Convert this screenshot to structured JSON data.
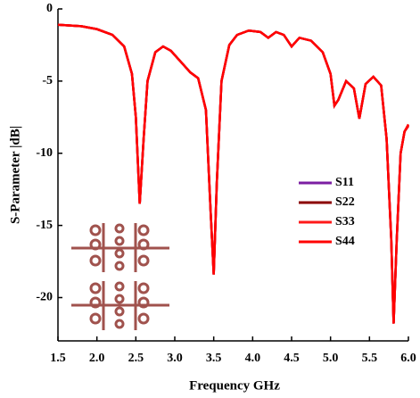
{
  "chart_data": {
    "type": "line",
    "x_label": "Frequency GHz",
    "y_label": "S-Parameter |dB|",
    "x": [
      1.5,
      1.8,
      2.0,
      2.2,
      2.35,
      2.45,
      2.5,
      2.55,
      2.6,
      2.65,
      2.75,
      2.85,
      2.95,
      3.1,
      3.2,
      3.3,
      3.4,
      3.46,
      3.5,
      3.54,
      3.6,
      3.7,
      3.8,
      3.95,
      4.1,
      4.2,
      4.3,
      4.4,
      4.5,
      4.6,
      4.75,
      4.9,
      5.0,
      5.05,
      5.1,
      5.2,
      5.3,
      5.37,
      5.45,
      5.55,
      5.65,
      5.72,
      5.78,
      5.81,
      5.85,
      5.9,
      5.95,
      6.0
    ],
    "series": [
      {
        "name": "S11",
        "color": "#7b1fa2",
        "values": [
          -1.1,
          -1.2,
          -1.4,
          -1.8,
          -2.6,
          -4.5,
          -7.5,
          -13.5,
          -9,
          -5,
          -3,
          -2.6,
          -2.9,
          -3.8,
          -4.4,
          -4.8,
          -7,
          -14,
          -18.4,
          -12,
          -5,
          -2.5,
          -1.8,
          -1.5,
          -1.6,
          -2.0,
          -1.6,
          -1.8,
          -2.6,
          -2.0,
          -2.2,
          -3,
          -4.5,
          -6.7,
          -6.3,
          -5.0,
          -5.5,
          -7.6,
          -5.2,
          -4.7,
          -5.3,
          -9,
          -16,
          -21.8,
          -16,
          -10,
          -8.5,
          -8.1
        ]
      },
      {
        "name": "S22",
        "color": "#8b0000",
        "values": [
          -1.1,
          -1.2,
          -1.4,
          -1.8,
          -2.6,
          -4.5,
          -7.5,
          -13.5,
          -9,
          -5,
          -3,
          -2.6,
          -2.9,
          -3.8,
          -4.4,
          -4.8,
          -7,
          -14,
          -18.4,
          -12,
          -5,
          -2.5,
          -1.8,
          -1.5,
          -1.6,
          -2.0,
          -1.6,
          -1.8,
          -2.6,
          -2.0,
          -2.2,
          -3,
          -4.5,
          -6.7,
          -6.3,
          -5.0,
          -5.5,
          -7.6,
          -5.2,
          -4.7,
          -5.3,
          -9,
          -16,
          -21.8,
          -16,
          -10,
          -8.5,
          -8.1
        ]
      },
      {
        "name": "S33",
        "color": "#ff1a1a",
        "values": [
          -1.1,
          -1.2,
          -1.4,
          -1.8,
          -2.6,
          -4.5,
          -7.5,
          -13.5,
          -9,
          -5,
          -3,
          -2.6,
          -2.9,
          -3.8,
          -4.4,
          -4.8,
          -7,
          -14,
          -18.4,
          -12,
          -5,
          -2.5,
          -1.8,
          -1.5,
          -1.6,
          -2.0,
          -1.6,
          -1.8,
          -2.6,
          -2.0,
          -2.2,
          -3,
          -4.5,
          -6.7,
          -6.3,
          -5.0,
          -5.5,
          -7.6,
          -5.2,
          -4.7,
          -5.3,
          -9,
          -16,
          -21.8,
          -16,
          -10,
          -8.5,
          -8.1
        ]
      },
      {
        "name": "S44",
        "color": "#ff0000",
        "values": [
          -1.1,
          -1.2,
          -1.4,
          -1.8,
          -2.6,
          -4.5,
          -7.5,
          -13.5,
          -9,
          -5,
          -3,
          -2.6,
          -2.9,
          -3.8,
          -4.4,
          -4.8,
          -7,
          -14,
          -18.4,
          -12,
          -5,
          -2.5,
          -1.8,
          -1.5,
          -1.6,
          -2.0,
          -1.6,
          -1.8,
          -2.6,
          -2.0,
          -2.2,
          -3,
          -4.5,
          -6.7,
          -6.3,
          -5.0,
          -5.5,
          -7.6,
          -5.2,
          -4.7,
          -5.3,
          -9,
          -16,
          -21.8,
          -16,
          -10,
          -8.5,
          -8.0
        ]
      }
    ],
    "xlim": [
      1.5,
      6.0
    ],
    "ylim": [
      -23,
      0
    ],
    "xticks": [
      1.5,
      {
        "value": 2.0,
        "label": "2.0"
      },
      2.5,
      {
        "value": 3.0,
        "label": "3.0"
      },
      3.5,
      {
        "value": 4.0,
        "label": "4.0"
      },
      4.5,
      {
        "value": 5.0,
        "label": "5.0"
      },
      5.5,
      {
        "value": 6.0,
        "label": "6.0"
      }
    ],
    "yticks": [
      0,
      -5,
      -10,
      -15,
      -20
    ],
    "legend": "center-right"
  }
}
